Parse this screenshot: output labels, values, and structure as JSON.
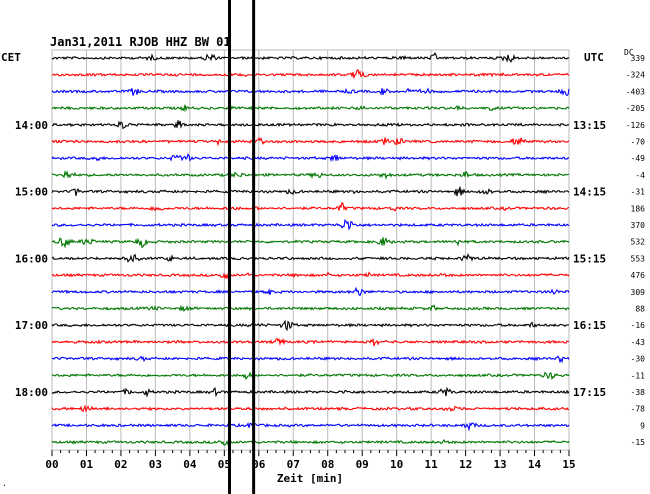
{
  "chart_data": {
    "type": "line",
    "title": "Jan31,2011  RJOB HHZ BW 01",
    "xlabel": "Zeit [min]",
    "left_timezone": "CET",
    "right_timezone": "UTC",
    "dc_header": "DC",
    "x_ticks": [
      "00",
      "01",
      "02",
      "03",
      "04",
      "05",
      "06",
      "07",
      "08",
      "09",
      "10",
      "11",
      "12",
      "13",
      "14",
      "15"
    ],
    "xlim": [
      0,
      15
    ],
    "left_time_labels": [
      {
        "row": 4,
        "label": "14:00"
      },
      {
        "row": 8,
        "label": "15:00"
      },
      {
        "row": 12,
        "label": "16:00"
      },
      {
        "row": 16,
        "label": "17:00"
      },
      {
        "row": 20,
        "label": "18:00"
      }
    ],
    "right_time_labels": [
      {
        "row": 4,
        "label": "13:15"
      },
      {
        "row": 8,
        "label": "14:15"
      },
      {
        "row": 12,
        "label": "15:15"
      },
      {
        "row": 16,
        "label": "16:15"
      },
      {
        "row": 20,
        "label": "17:15"
      }
    ],
    "trace_colors": [
      "#000000",
      "#ff0000",
      "#0000ff",
      "#007700"
    ],
    "dc_offsets": [
      339,
      -324,
      -403,
      -205,
      -126,
      -70,
      -49,
      -4,
      -31,
      186,
      370,
      532,
      553,
      476,
      309,
      88,
      -16,
      -43,
      -30,
      -11,
      -38,
      -78,
      9,
      -15
    ],
    "marker_lines_min": [
      5.15,
      5.85
    ],
    "grid": true
  }
}
